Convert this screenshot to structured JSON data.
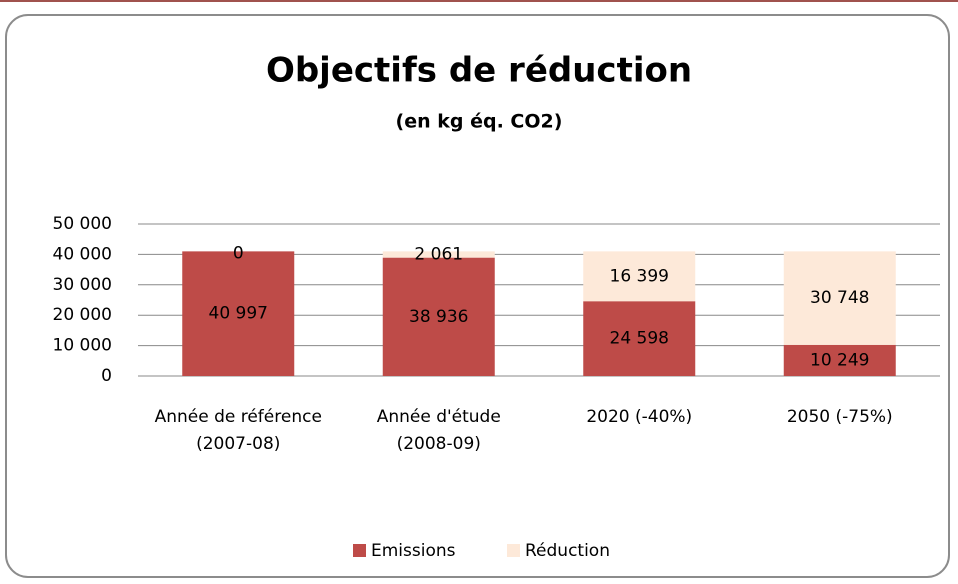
{
  "chart_data": {
    "type": "stacked_bar",
    "title": "Objectifs de réduction",
    "subtitle": "(en kg éq. CO2)",
    "categories": [
      "Année de référence (2007-08)",
      "Année d'étude (2008-09)",
      "2020 (-40%)",
      "2050 (-75%)"
    ],
    "series": [
      {
        "name": "Emissions",
        "color": "#be4b48",
        "values": [
          40997,
          38936,
          24598,
          10249
        ],
        "value_labels": [
          "40 997",
          "38 936",
          "24 598",
          "10 249"
        ]
      },
      {
        "name": "Réduction",
        "color": "#fde9d9",
        "values": [
          0,
          2061,
          16399,
          30748
        ],
        "value_labels": [
          "0",
          "2 061",
          "16 399",
          "30 748"
        ]
      }
    ],
    "ylim": [
      0,
      50000
    ],
    "yticks": [
      0,
      {
        "value": 10000,
        "label": "10 000"
      },
      {
        "value": 20000,
        "label": "20 000"
      },
      {
        "value": 30000,
        "label": "30 000"
      },
      {
        "value": 40000,
        "label": "40 000"
      },
      {
        "value": 50000,
        "label": "50 000"
      }
    ],
    "grid": true,
    "legend": "bottom"
  }
}
